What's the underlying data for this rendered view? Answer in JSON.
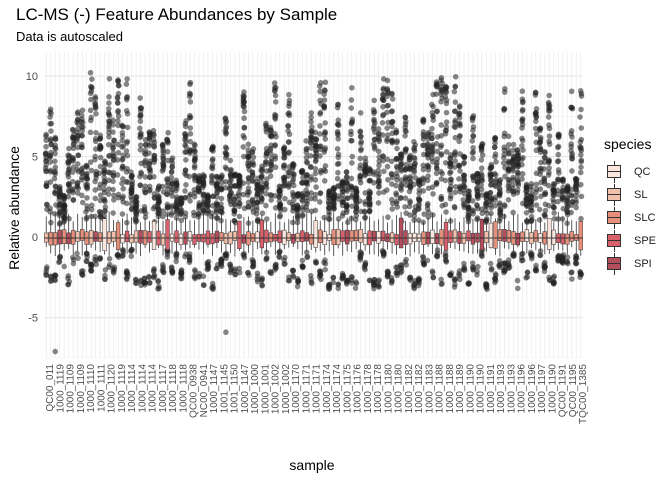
{
  "chart_data": {
    "type": "boxplot",
    "title": "LC-MS (-) Feature Abundances by Sample",
    "subtitle": "Data is autoscaled",
    "xlabel": "sample",
    "ylabel": "Relative abundance",
    "ylim": [
      -7.5,
      11.5
    ],
    "yticks": [
      -5,
      0,
      5,
      10
    ],
    "grid": true,
    "legend": {
      "title": "species",
      "placement": "right",
      "entries": [
        {
          "label": "QC",
          "color": "#fbe5dc"
        },
        {
          "label": "SL",
          "color": "#f2c1ac"
        },
        {
          "label": "SLC",
          "color": "#e68f7b"
        },
        {
          "label": "SPE",
          "color": "#d8606b"
        },
        {
          "label": "SPI",
          "color": "#b44e5c"
        }
      ]
    },
    "sample_count": 120,
    "x_tick_labels": [
      "QC00_011",
      "1000_1119",
      "1000_1109",
      "1000_1109",
      "1000_1110",
      "1000_1111",
      "1000_1120",
      "1000_1119",
      "1000_1114",
      "1000_1114",
      "1000_1114",
      "1000_1117",
      "1000_1118",
      "1000_1118",
      "QC00_0938",
      "NC00_0941",
      "1000_1147",
      "1001_1145",
      "1001_1150",
      "1000_1147",
      "1000_1000",
      "1000_1001",
      "1000_1002",
      "1000_1002",
      "1000_1170",
      "1000_1171",
      "1000_1171",
      "1000_1174",
      "1000_1174",
      "1000_1175",
      "1000_1176",
      "1000_1178",
      "1000_1178",
      "1000_1180",
      "1000_1180",
      "1000_1182",
      "1000_1182",
      "1000_1183",
      "1000_1188",
      "1000_1188",
      "1000_1189",
      "1000_1190",
      "1000_1190",
      "1000_1191",
      "1000_1193",
      "1000_1193",
      "1000_1196",
      "1000_1196",
      "1000_1197",
      "1000_1190",
      "QC00_1191",
      "QC00_1195",
      "TQC00_1385"
    ]
  }
}
